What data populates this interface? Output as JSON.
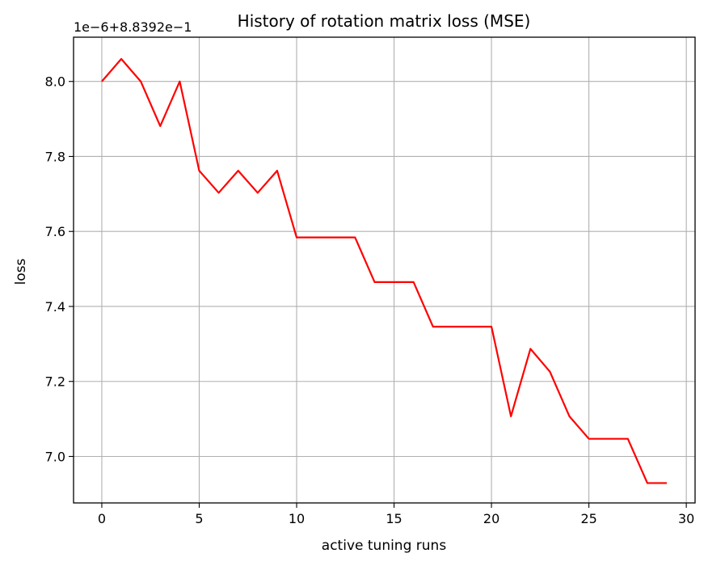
{
  "chart_data": {
    "type": "line",
    "title": "History of rotation matrix loss (MSE)",
    "xlabel": "active tuning runs",
    "ylabel": "loss",
    "offset_text": "1e−6+8.8392e−1",
    "grid": true,
    "line_color": "#ff0000",
    "xlim": [
      -1.45,
      30.45
    ],
    "ylim": [
      6.876,
      8.118
    ],
    "xticks": [
      0,
      5,
      10,
      15,
      20,
      25,
      30
    ],
    "yticks": [
      7.0,
      7.2,
      7.4,
      7.6,
      7.8,
      8.0
    ],
    "ytick_labels": [
      "7.0",
      "7.2",
      "7.4",
      "7.6",
      "7.8",
      "8.0"
    ],
    "x": [
      0,
      1,
      2,
      3,
      4,
      5,
      6,
      7,
      8,
      9,
      10,
      11,
      12,
      13,
      14,
      15,
      16,
      17,
      18,
      19,
      20,
      21,
      22,
      23,
      24,
      25,
      26,
      27,
      28,
      29
    ],
    "series": [
      {
        "values": [
          8.0,
          8.06,
          8.0,
          7.881,
          8.0,
          7.762,
          7.703,
          7.762,
          7.703,
          7.762,
          7.584,
          7.584,
          7.584,
          7.584,
          7.465,
          7.465,
          7.465,
          7.346,
          7.346,
          7.346,
          7.346,
          7.107,
          7.287,
          7.226,
          7.107,
          7.047,
          7.047,
          7.047,
          6.929,
          6.929
        ]
      }
    ]
  }
}
